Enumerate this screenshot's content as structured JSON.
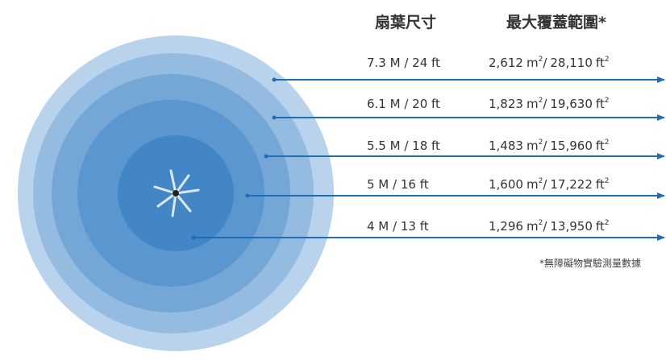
{
  "header": {
    "size": "扇葉尺寸",
    "coverage": "最大覆蓋範圍*"
  },
  "units": {
    "m": "m",
    "ft": "ft",
    "sup": "2",
    "slash": "/"
  },
  "rows": [
    {
      "size": "7.3 M / 24 ft",
      "area_m": "2,612",
      "area_ft": "28,110"
    },
    {
      "size": "6.1 M / 20 ft",
      "area_m": "1,823",
      "area_ft": "19,630"
    },
    {
      "size": "5.5 M / 18 ft",
      "area_m": "1,483",
      "area_ft": "15,960"
    },
    {
      "size": "5 M / 16 ft",
      "area_m": "1,600",
      "area_ft": "17,222"
    },
    {
      "size": "4 M / 13 ft",
      "area_m": "1,296",
      "area_ft": "13,950"
    }
  ],
  "footnote": "*無障礙物實驗測量數據"
}
